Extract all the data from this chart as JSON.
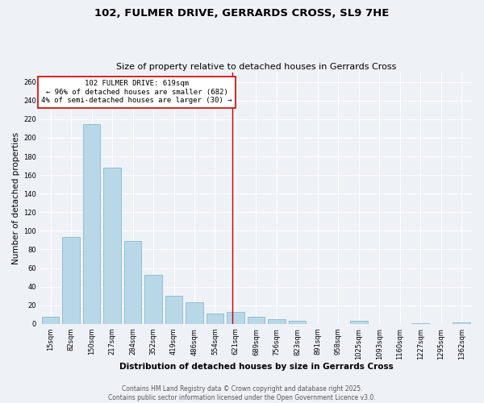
{
  "title_line1": "102, FULMER DRIVE, GERRARDS CROSS, SL9 7HE",
  "title_line2": "Size of property relative to detached houses in Gerrards Cross",
  "xlabel": "Distribution of detached houses by size in Gerrards Cross",
  "ylabel": "Number of detached properties",
  "categories": [
    "15sqm",
    "82sqm",
    "150sqm",
    "217sqm",
    "284sqm",
    "352sqm",
    "419sqm",
    "486sqm",
    "554sqm",
    "621sqm",
    "689sqm",
    "756sqm",
    "823sqm",
    "891sqm",
    "958sqm",
    "1025sqm",
    "1093sqm",
    "1160sqm",
    "1227sqm",
    "1295sqm",
    "1362sqm"
  ],
  "values": [
    8,
    93,
    215,
    168,
    89,
    53,
    30,
    23,
    11,
    13,
    8,
    5,
    3,
    0,
    0,
    3,
    0,
    0,
    1,
    0,
    2
  ],
  "bar_color": "#b8d8e8",
  "bar_edgecolor": "#7aafc8",
  "vline_x": 8.85,
  "vline_color": "#cc0000",
  "annotation_text": "102 FULMER DRIVE: 619sqm\n← 96% of detached houses are smaller (682)\n4% of semi-detached houses are larger (30) →",
  "annotation_box_color": "#ffffff",
  "annotation_box_edgecolor": "#cc0000",
  "ylim": [
    0,
    270
  ],
  "yticks": [
    0,
    20,
    40,
    60,
    80,
    100,
    120,
    140,
    160,
    180,
    200,
    220,
    240,
    260
  ],
  "background_color": "#eef2f7",
  "grid_color": "#ffffff",
  "footer_line1": "Contains HM Land Registry data © Crown copyright and database right 2025.",
  "footer_line2": "Contains public sector information licensed under the Open Government Licence v3.0.",
  "title_fontsize": 9.5,
  "subtitle_fontsize": 8,
  "axis_label_fontsize": 7.5,
  "tick_fontsize": 6,
  "annotation_fontsize": 6.5,
  "footer_fontsize": 5.5
}
